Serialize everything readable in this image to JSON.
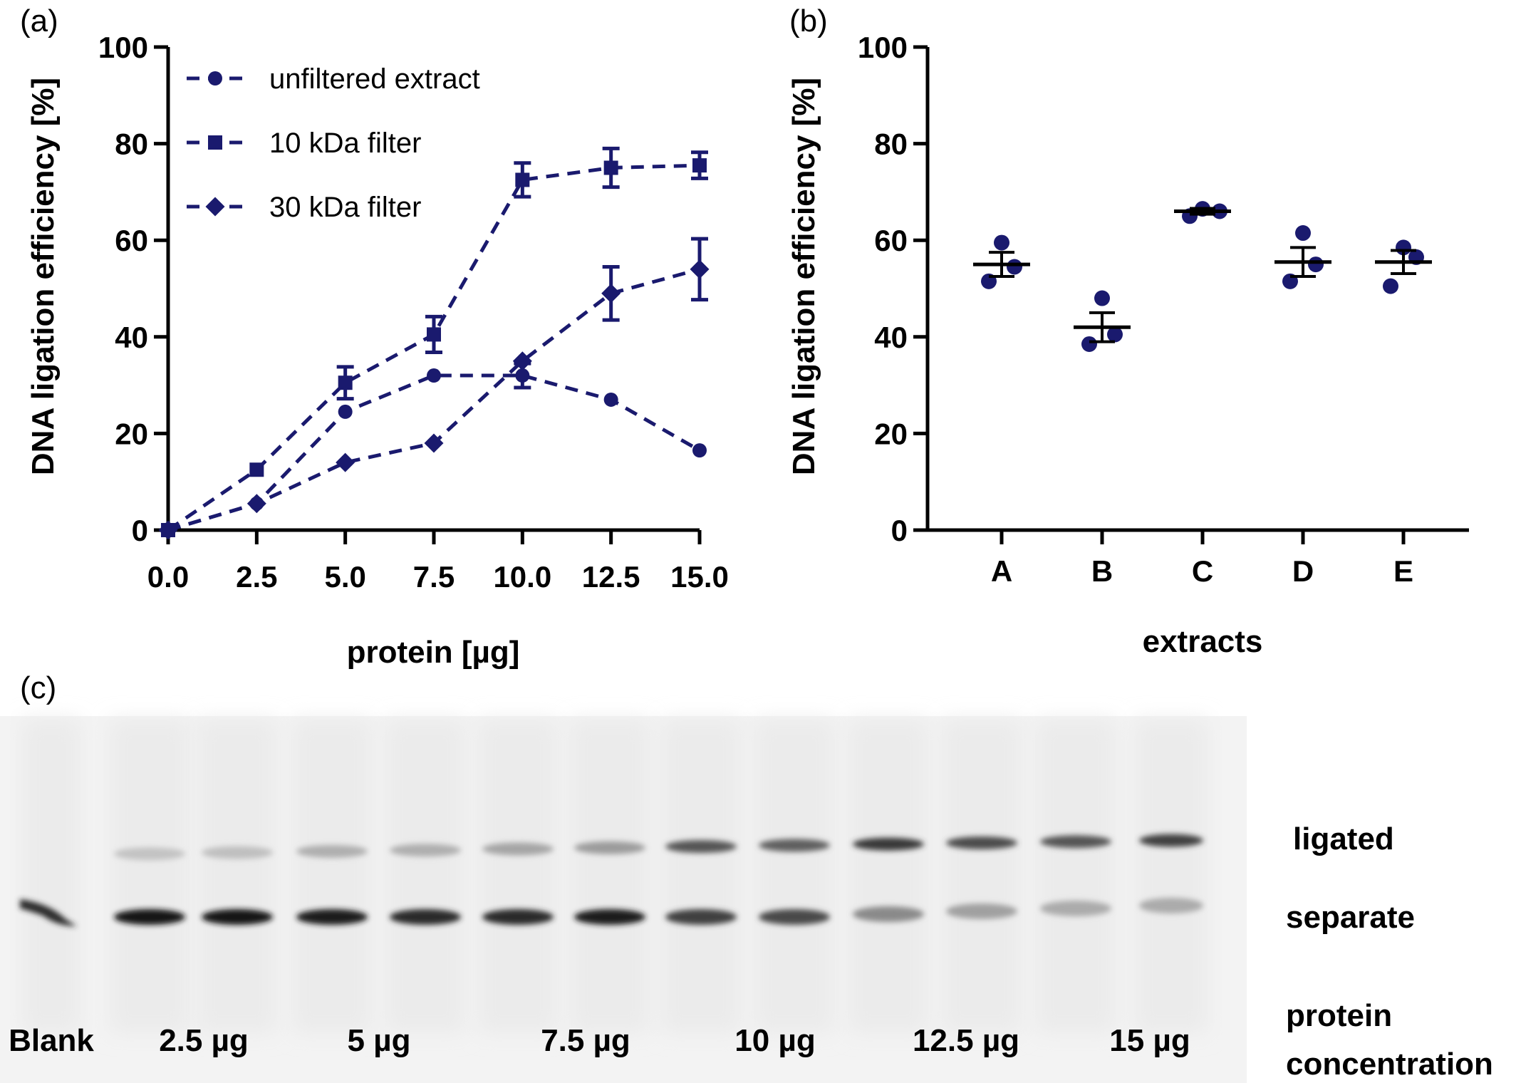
{
  "panels": {
    "a": {
      "letter": "(a)"
    },
    "b": {
      "letter": "(b)"
    },
    "c": {
      "letter": "(c)"
    }
  },
  "colors": {
    "series": "#1a1a6e",
    "axis": "#000000"
  },
  "chart_data": [
    {
      "type": "line",
      "panel": "(a)",
      "title": "",
      "xlabel": "protein [µg]",
      "ylabel": "DNA ligation efficiency [%]",
      "xlim": [
        0,
        15
      ],
      "ylim": [
        0,
        100
      ],
      "xticks": [
        "0.0",
        "2.5",
        "5.0",
        "7.5",
        "10.0",
        "12.5",
        "15.0"
      ],
      "yticks": [
        "0",
        "20",
        "40",
        "60",
        "80",
        "100"
      ],
      "x": [
        0,
        2.5,
        5,
        7.5,
        10,
        12.5,
        15
      ],
      "legend": "top-left",
      "line_style": "dashed",
      "series": [
        {
          "name": "unfiltered extract",
          "marker": "circle",
          "values": [
            0,
            5.5,
            24.5,
            32,
            32,
            27,
            16.5
          ],
          "errors": [
            0,
            0,
            0,
            0,
            2.5,
            0,
            0
          ]
        },
        {
          "name": "10 kDa filter",
          "marker": "square",
          "values": [
            0,
            12.5,
            30.5,
            40.5,
            72.5,
            75,
            75.5
          ],
          "errors": [
            0,
            0,
            3.3,
            3.7,
            3.5,
            4.0,
            2.7
          ]
        },
        {
          "name": "30 kDa filter",
          "marker": "diamond",
          "values": [
            0,
            5.5,
            14,
            18,
            35,
            49,
            54
          ],
          "errors": [
            0,
            0,
            0,
            0,
            0,
            5.5,
            6.3
          ]
        }
      ]
    },
    {
      "type": "scatter",
      "panel": "(b)",
      "title": "",
      "xlabel": "extracts",
      "ylabel": "DNA ligation efficiency [%]",
      "ylim": [
        0,
        100
      ],
      "yticks": [
        "0",
        "20",
        "40",
        "60",
        "80",
        "100"
      ],
      "categories": [
        "A",
        "B",
        "C",
        "D",
        "E"
      ],
      "points": [
        [
          59.5,
          51.5,
          54.5
        ],
        [
          48,
          38.5,
          40.5
        ],
        [
          65,
          66.5,
          66
        ],
        [
          61.5,
          51.5,
          55
        ],
        [
          58.5,
          50.5,
          56.5
        ]
      ],
      "mean": [
        55,
        42,
        66,
        55.5,
        55.5
      ],
      "sem": [
        2.5,
        3.0,
        0.6,
        3.0,
        2.4
      ]
    }
  ],
  "gel": {
    "band_labels": [
      "ligated",
      "separate"
    ],
    "axis_label_line1": "protein",
    "axis_label_line2": "concentration",
    "lane_groups": [
      "Blank",
      "2.5 µg",
      "5 µg",
      "7.5 µg",
      "10 µg",
      "12.5 µg",
      "15 µg"
    ],
    "lanes": [
      {
        "ligated": 0.0,
        "separate": 0.9
      },
      {
        "ligated": 0.2,
        "separate": 1.0
      },
      {
        "ligated": 0.22,
        "separate": 1.0
      },
      {
        "ligated": 0.3,
        "separate": 0.95
      },
      {
        "ligated": 0.3,
        "separate": 0.9
      },
      {
        "ligated": 0.35,
        "separate": 0.9
      },
      {
        "ligated": 0.4,
        "separate": 0.95
      },
      {
        "ligated": 0.75,
        "separate": 0.8
      },
      {
        "ligated": 0.7,
        "separate": 0.75
      },
      {
        "ligated": 0.9,
        "separate": 0.45
      },
      {
        "ligated": 0.8,
        "separate": 0.35
      },
      {
        "ligated": 0.75,
        "separate": 0.3
      },
      {
        "ligated": 0.85,
        "separate": 0.3
      }
    ]
  }
}
